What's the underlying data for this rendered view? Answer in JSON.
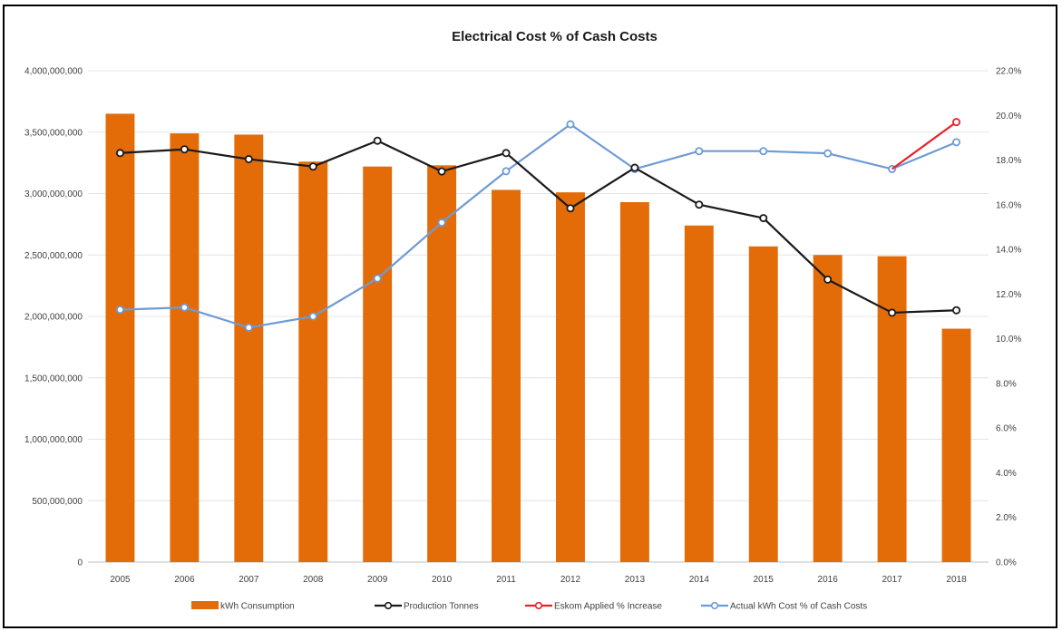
{
  "chart_data": {
    "type": "bar",
    "title": "Electrical Cost % of Cash Costs",
    "categories": [
      "2005",
      "2006",
      "2007",
      "2008",
      "2009",
      "2010",
      "2011",
      "2012",
      "2013",
      "2014",
      "2015",
      "2016",
      "2017",
      "2018"
    ],
    "y_left": {
      "min": 0,
      "max": 4000000000,
      "step": 500000000,
      "tick_labels": [
        "0",
        "500,000,000",
        "1,000,000,000",
        "1,500,000,000",
        "2,000,000,000",
        "2,500,000,000",
        "3,000,000,000",
        "3,500,000,000",
        "4,000,000,000"
      ]
    },
    "y_right": {
      "min": 0,
      "max": 22,
      "step": 2,
      "tick_labels": [
        "0.0%",
        "2.0%",
        "4.0%",
        "6.0%",
        "8.0%",
        "10.0%",
        "12.0%",
        "14.0%",
        "16.0%",
        "18.0%",
        "20.0%",
        "22.0%"
      ]
    },
    "grid": true,
    "legend_position": "bottom",
    "series": [
      {
        "name": "kWh Consumption",
        "kind": "bar",
        "axis": "left",
        "color": "#E36C09",
        "values": [
          3650000000,
          3490000000,
          3480000000,
          3260000000,
          3220000000,
          3230000000,
          3030000000,
          3010000000,
          2930000000,
          2740000000,
          2570000000,
          2500000000,
          2490000000,
          1900000000
        ]
      },
      {
        "name": "Production Tonnes",
        "kind": "line",
        "axis": "left",
        "color": "#1a1a1a",
        "values": [
          3330000000,
          3360000000,
          3280000000,
          3220000000,
          3430000000,
          3180000000,
          3330000000,
          2880000000,
          3210000000,
          2910000000,
          2800000000,
          2300000000,
          2030000000,
          2050000000
        ]
      },
      {
        "name": "Eskom Applied % Increase",
        "kind": "line",
        "axis": "right",
        "color": "#E8212B",
        "values": [
          null,
          null,
          null,
          null,
          null,
          null,
          null,
          null,
          null,
          null,
          null,
          null,
          17.6,
          19.7
        ]
      },
      {
        "name": "Actual kWh Cost % of Cash Costs",
        "kind": "line",
        "axis": "right",
        "color": "#6E9BD5",
        "values": [
          11.3,
          11.4,
          10.5,
          11.0,
          12.7,
          15.2,
          17.5,
          19.6,
          17.6,
          18.4,
          18.4,
          18.3,
          17.6,
          18.8
        ]
      }
    ]
  }
}
